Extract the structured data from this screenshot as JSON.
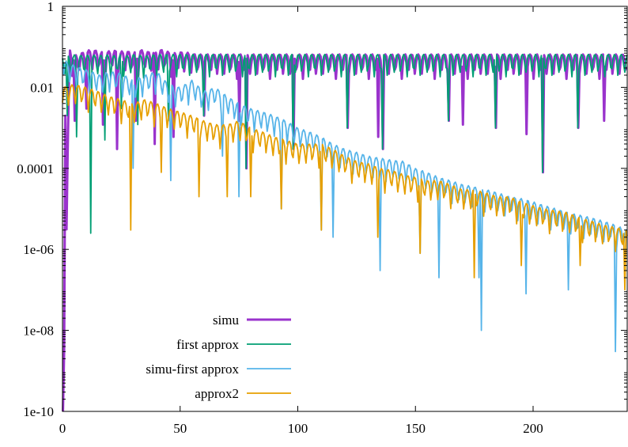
{
  "chart_data": {
    "type": "line",
    "title": "",
    "xlabel": "",
    "ylabel": "",
    "y_scale": "log",
    "xlim": [
      0,
      240
    ],
    "ylim": [
      1e-10,
      1
    ],
    "grid": false,
    "legend_placement": "bottom-center",
    "x_ticks": [
      {
        "value": 0,
        "label": "0"
      },
      {
        "value": 50,
        "label": "50"
      },
      {
        "value": 100,
        "label": "100"
      },
      {
        "value": 150,
        "label": "150"
      },
      {
        "value": 200,
        "label": "200"
      }
    ],
    "y_ticks": [
      {
        "value": 1,
        "label": "1"
      },
      {
        "value": 0.01,
        "label": "0.01"
      },
      {
        "value": 0.0001,
        "label": "0.0001"
      },
      {
        "value": 1e-06,
        "label": "1e-06"
      },
      {
        "value": 1e-08,
        "label": "1e-08"
      },
      {
        "value": 1e-10,
        "label": "1e-10"
      }
    ],
    "series": [
      {
        "name": "simu",
        "color": "#9a33cc",
        "width": 3,
        "x": [
          0.2,
          3,
          6,
          9,
          12,
          15,
          18,
          21,
          24,
          27,
          30,
          33,
          36,
          39,
          42,
          45,
          48,
          51,
          54,
          57,
          60,
          66,
          72,
          80,
          90,
          100,
          110,
          120,
          130,
          140,
          150,
          160,
          170,
          180,
          190,
          200,
          210,
          220,
          230,
          240
        ],
        "y": [
          1e-10,
          0.09,
          0.06,
          0.075,
          0.085,
          0.08,
          0.07,
          0.085,
          0.075,
          0.08,
          0.07,
          0.085,
          0.075,
          0.08,
          0.085,
          0.075,
          0.07,
          0.075,
          0.07,
          0.065,
          0.065,
          0.065,
          0.065,
          0.065,
          0.065,
          0.065,
          0.065,
          0.065,
          0.065,
          0.065,
          0.065,
          0.065,
          0.065,
          0.065,
          0.065,
          0.065,
          0.065,
          0.065,
          0.065,
          0.065
        ],
        "dips": [
          {
            "x": 1,
            "y": 0.002
          },
          {
            "x": 5,
            "y": 0.0015
          },
          {
            "x": 10,
            "y": 0.003
          },
          {
            "x": 17,
            "y": 0.0012
          },
          {
            "x": 23,
            "y": 0.0003
          },
          {
            "x": 31,
            "y": 0.0015
          },
          {
            "x": 39,
            "y": 0.0004
          },
          {
            "x": 47,
            "y": 0.0006
          },
          {
            "x": 60,
            "y": 0.002
          },
          {
            "x": 75,
            "y": 0.0015
          },
          {
            "x": 78,
            "y": 0.0001
          },
          {
            "x": 98,
            "y": 0.0003
          },
          {
            "x": 121,
            "y": 0.001
          },
          {
            "x": 134,
            "y": 0.0006
          },
          {
            "x": 136,
            "y": 0.0003
          },
          {
            "x": 164,
            "y": 0.0015
          },
          {
            "x": 170,
            "y": 0.0012
          },
          {
            "x": 184,
            "y": 0.001
          },
          {
            "x": 197,
            "y": 0.0007
          },
          {
            "x": 204,
            "y": 8e-05
          },
          {
            "x": 219,
            "y": 0.001
          },
          {
            "x": 230,
            "y": 0.0015
          }
        ]
      },
      {
        "name": "first approx",
        "color": "#009e73",
        "width": 1.8,
        "x": [
          0,
          3,
          6,
          9,
          12,
          15,
          18,
          21,
          24,
          27,
          30,
          35,
          40,
          50,
          60,
          70,
          80,
          90,
          100,
          110,
          120,
          130,
          140,
          150,
          160,
          170,
          180,
          190,
          200,
          210,
          220,
          230,
          240
        ],
        "y": [
          0.06,
          0.06,
          0.065,
          0.06,
          0.065,
          0.06,
          0.065,
          0.06,
          0.065,
          0.06,
          0.065,
          0.06,
          0.065,
          0.065,
          0.065,
          0.065,
          0.065,
          0.065,
          0.065,
          0.065,
          0.065,
          0.065,
          0.065,
          0.065,
          0.065,
          0.065,
          0.065,
          0.065,
          0.065,
          0.065,
          0.065,
          0.065,
          0.065
        ],
        "dips": [
          {
            "x": 2,
            "y": 0.002
          },
          {
            "x": 6,
            "y": 0.0006
          },
          {
            "x": 12,
            "y": 2.5e-06
          },
          {
            "x": 18,
            "y": 0.0005
          },
          {
            "x": 25,
            "y": 0.003
          },
          {
            "x": 32,
            "y": 0.0012
          },
          {
            "x": 45,
            "y": 0.0015
          },
          {
            "x": 60,
            "y": 0.002
          },
          {
            "x": 78,
            "y": 0.0001
          },
          {
            "x": 98,
            "y": 0.0003
          },
          {
            "x": 121,
            "y": 0.001
          },
          {
            "x": 136,
            "y": 0.0003
          },
          {
            "x": 164,
            "y": 0.0015
          },
          {
            "x": 184,
            "y": 0.001
          },
          {
            "x": 204,
            "y": 8e-05
          },
          {
            "x": 219,
            "y": 0.001
          }
        ]
      },
      {
        "name": "simu-first approx",
        "color": "#56b4e9",
        "width": 1.8,
        "x": [
          0,
          2,
          5,
          8,
          12,
          16,
          20,
          25,
          30,
          35,
          40,
          45,
          50,
          55,
          60,
          65,
          70,
          75,
          80,
          85,
          90,
          95,
          100,
          105,
          110,
          115,
          120,
          125,
          130,
          135,
          140,
          145,
          150,
          155,
          160,
          165,
          170,
          175,
          180,
          185,
          190,
          195,
          200,
          205,
          210,
          215,
          220,
          225,
          230,
          235,
          240
        ],
        "y": [
          0.06,
          0.04,
          0.035,
          0.03,
          0.025,
          0.02,
          0.025,
          0.022,
          0.015,
          0.02,
          0.025,
          0.012,
          0.01,
          0.015,
          0.008,
          0.01,
          0.006,
          0.004,
          0.003,
          0.0025,
          0.002,
          0.0015,
          0.001,
          0.0008,
          0.0006,
          0.0004,
          0.0003,
          0.00025,
          0.0002,
          0.00018,
          0.00016,
          0.00015,
          0.0001,
          8e-05,
          6e-05,
          5e-05,
          4e-05,
          3.5e-05,
          3e-05,
          2.5e-05,
          2e-05,
          1.8e-05,
          1.5e-05,
          1.2e-05,
          1e-05,
          8e-06,
          7e-06,
          6e-06,
          5e-06,
          4e-06,
          3e-06
        ],
        "dips": [
          {
            "x": 30,
            "y": 0.0001
          },
          {
            "x": 46,
            "y": 5e-05
          },
          {
            "x": 68,
            "y": 0.0002
          },
          {
            "x": 75,
            "y": 2e-05
          },
          {
            "x": 93,
            "y": 1e-05
          },
          {
            "x": 110,
            "y": 3e-06
          },
          {
            "x": 115,
            "y": 2e-06
          },
          {
            "x": 135,
            "y": 3e-07
          },
          {
            "x": 152,
            "y": 8e-07
          },
          {
            "x": 160,
            "y": 2e-07
          },
          {
            "x": 177,
            "y": 2e-07
          },
          {
            "x": 178,
            "y": 1e-08
          },
          {
            "x": 197,
            "y": 8e-08
          },
          {
            "x": 215,
            "y": 1e-07
          },
          {
            "x": 235,
            "y": 3e-09
          }
        ]
      },
      {
        "name": "approx2",
        "color": "#e69f00",
        "width": 1.8,
        "x": [
          0,
          5,
          10,
          15,
          20,
          25,
          30,
          35,
          40,
          45,
          50,
          55,
          60,
          65,
          70,
          75,
          80,
          85,
          90,
          95,
          100,
          105,
          110,
          115,
          120,
          125,
          130,
          135,
          140,
          145,
          150,
          155,
          160,
          165,
          170,
          175,
          180,
          185,
          190,
          195,
          200,
          205,
          210,
          215,
          220,
          225,
          230,
          235,
          240
        ],
        "y": [
          0.01,
          0.012,
          0.01,
          0.008,
          0.006,
          0.005,
          0.004,
          0.005,
          0.004,
          0.003,
          0.0025,
          0.002,
          0.0015,
          0.0012,
          0.0012,
          0.0015,
          0.001,
          0.0008,
          0.0006,
          0.0005,
          0.0004,
          0.0004,
          0.0004,
          0.0003,
          0.0002,
          0.00015,
          0.00013,
          0.0001,
          9e-05,
          7e-05,
          6e-05,
          5e-05,
          5e-05,
          4e-05,
          3e-05,
          3e-05,
          2.5e-05,
          2e-05,
          2e-05,
          1.5e-05,
          1.2e-05,
          1e-05,
          9e-06,
          8e-06,
          6e-06,
          5e-06,
          4e-06,
          3.5e-06,
          3e-06
        ],
        "dips": [
          {
            "x": 29,
            "y": 3e-06
          },
          {
            "x": 42,
            "y": 8e-05
          },
          {
            "x": 58,
            "y": 2e-05
          },
          {
            "x": 70,
            "y": 2e-05
          },
          {
            "x": 80,
            "y": 2e-05
          },
          {
            "x": 93,
            "y": 1e-05
          },
          {
            "x": 110,
            "y": 3e-06
          },
          {
            "x": 134,
            "y": 2e-06
          },
          {
            "x": 152,
            "y": 8e-07
          },
          {
            "x": 175,
            "y": 2e-07
          },
          {
            "x": 195,
            "y": 4e-07
          },
          {
            "x": 220,
            "y": 4e-07
          },
          {
            "x": 239,
            "y": 1e-07
          }
        ]
      }
    ]
  }
}
